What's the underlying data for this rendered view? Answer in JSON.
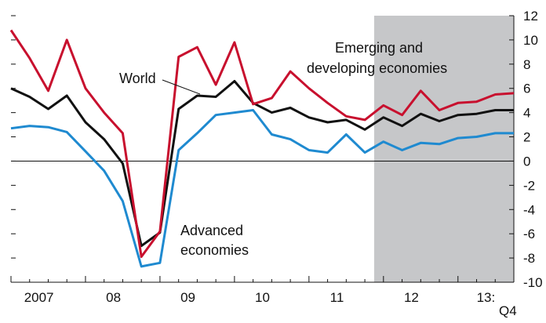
{
  "chart_data": {
    "type": "line",
    "x_labels": [
      "2007",
      "08",
      "09",
      "10",
      "11",
      "12",
      "13:"
    ],
    "x_sublabel": "Q4",
    "x_quarters": [
      "2007Q1",
      "2007Q2",
      "2007Q3",
      "2007Q4",
      "2008Q1",
      "2008Q2",
      "2008Q3",
      "2008Q4",
      "2009Q1",
      "2009Q2",
      "2009Q3",
      "2009Q4",
      "2010Q1",
      "2010Q2",
      "2010Q3",
      "2010Q4",
      "2011Q1",
      "2011Q2",
      "2011Q3",
      "2011Q4",
      "2012Q1",
      "2012Q2",
      "2012Q3",
      "2012Q4",
      "2013Q1",
      "2013Q2",
      "2013Q3",
      "2013Q4"
    ],
    "ylim": [
      -10,
      12
    ],
    "y_ticks": [
      12,
      10,
      8,
      6,
      4,
      2,
      0,
      -2,
      -4,
      -6,
      -8,
      -10
    ],
    "y_tick_labels": [
      "12",
      "10",
      "8",
      "6",
      "4",
      "2",
      "0",
      "-2",
      "-4",
      "-6",
      "-8",
      "-10"
    ],
    "shaded_from": "2012Q1",
    "series": [
      {
        "label": "Emerging and developing economies",
        "color": "#c8102e",
        "values": [
          10.8,
          8.5,
          5.8,
          10.0,
          6.0,
          4.0,
          2.3,
          -7.9,
          -5.8,
          8.6,
          9.4,
          6.3,
          9.8,
          4.7,
          5.2,
          7.4,
          6.0,
          4.8,
          3.7,
          3.4,
          4.6,
          3.8,
          5.8,
          4.2,
          4.8,
          4.9,
          5.5,
          5.6
        ]
      },
      {
        "label": "World",
        "color": "#111111",
        "values": [
          6.0,
          5.3,
          4.3,
          5.4,
          3.2,
          1.8,
          -0.2,
          -7.0,
          -5.9,
          4.3,
          5.4,
          5.3,
          6.6,
          4.8,
          4.0,
          4.4,
          3.6,
          3.2,
          3.4,
          2.6,
          3.6,
          2.9,
          3.9,
          3.3,
          3.8,
          3.9,
          4.2,
          4.2
        ]
      },
      {
        "label": "Advanced economies",
        "color": "#1f8ad0",
        "values": [
          2.7,
          2.9,
          2.8,
          2.4,
          0.8,
          -0.8,
          -3.3,
          -8.7,
          -8.4,
          0.9,
          2.3,
          3.8,
          4.0,
          4.2,
          2.2,
          1.8,
          0.9,
          0.7,
          2.2,
          0.7,
          1.6,
          0.9,
          1.5,
          1.4,
          1.9,
          2.0,
          2.3,
          2.3
        ]
      }
    ],
    "annotations": {
      "emerging_line1": "Emerging and",
      "emerging_line2": "developing economies",
      "world": "World",
      "advanced_line1": "Advanced",
      "advanced_line2": "economies"
    }
  }
}
